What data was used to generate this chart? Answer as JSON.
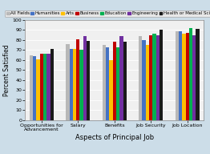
{
  "categories": [
    "Opportunities for\nAdvancement",
    "Salary",
    "Benefits",
    "Job Security",
    "Job Location"
  ],
  "series": [
    {
      "label": "All Fields",
      "color": "#b8b8b8",
      "values": [
        65,
        76,
        75,
        84,
        89
      ]
    },
    {
      "label": "Humanities",
      "color": "#4472c4",
      "values": [
        64,
        71,
        73,
        80,
        89
      ]
    },
    {
      "label": "Arts",
      "color": "#ffc000",
      "values": [
        61,
        71,
        60,
        75,
        86
      ]
    },
    {
      "label": "Business",
      "color": "#c00000",
      "values": [
        66,
        81,
        78,
        85,
        87
      ]
    },
    {
      "label": "Education",
      "color": "#00b050",
      "values": [
        66,
        70,
        73,
        86,
        92
      ]
    },
    {
      "label": "Engineering",
      "color": "#7030a0",
      "values": [
        66,
        84,
        84,
        85,
        85
      ]
    },
    {
      "label": "Health or Medical Sciences",
      "color": "#1a1a1a",
      "values": [
        71,
        79,
        78,
        90,
        91
      ]
    }
  ],
  "xlabel": "Aspects of Principal Job",
  "ylabel": "Percent Satisfied",
  "ylim": [
    0,
    100
  ],
  "yticks": [
    0,
    10,
    20,
    30,
    40,
    50,
    60,
    70,
    80,
    90,
    100
  ],
  "background_color": "#ccdde8",
  "plot_bg_color": "#f0f0f0",
  "axis_fontsize": 5.5,
  "legend_fontsize": 4.0,
  "tick_fontsize": 4.5,
  "xlabel_fontsize": 6.0
}
